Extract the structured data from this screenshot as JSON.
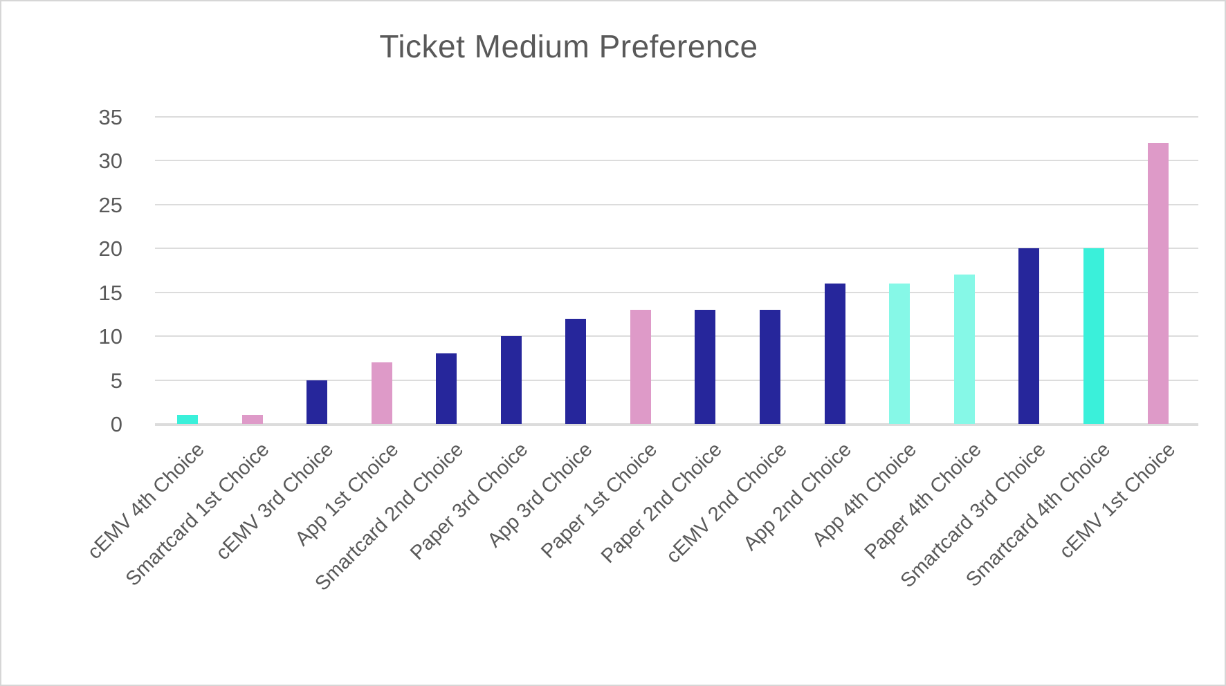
{
  "chart_data": {
    "type": "bar",
    "title": "Ticket Medium Preference",
    "categories": [
      "cEMV 4th Choice",
      "Smartcard 1st Choice",
      "cEMV 3rd Choice",
      "App 1st Choice",
      "Smartcard 2nd Choice",
      "Paper 3rd Choice",
      "App 3rd Choice",
      "Paper 1st Choice",
      "Paper 2nd Choice",
      "cEMV 2nd Choice",
      "App 2nd Choice",
      "App 4th Choice",
      "Paper 4th Choice",
      "Smartcard 3rd Choice",
      "Smartcard 4th Choice",
      "cEMV 1st Choice"
    ],
    "values": [
      1,
      1,
      5,
      7,
      8,
      10,
      12,
      13,
      13,
      13,
      16,
      16,
      17,
      20,
      20,
      32
    ],
    "bar_color_keys": [
      "turquoise",
      "pink",
      "navy",
      "pink",
      "navy",
      "navy",
      "navy",
      "pink",
      "navy",
      "navy",
      "navy",
      "light_aqua",
      "light_aqua",
      "navy",
      "turquoise",
      "pink"
    ],
    "palette": {
      "navy": "#26269b",
      "pink": "#de9ac8",
      "turquoise": "#3af0da",
      "light_aqua": "#86f8e7"
    },
    "xlabel": "",
    "ylabel": "",
    "ylim": [
      0,
      35
    ],
    "yticks": [
      0,
      5,
      10,
      15,
      20,
      25,
      30,
      35
    ],
    "grid": "horizontal",
    "legend": "none",
    "gridline_color": "#dcdcdc",
    "text_color": "#595959"
  }
}
